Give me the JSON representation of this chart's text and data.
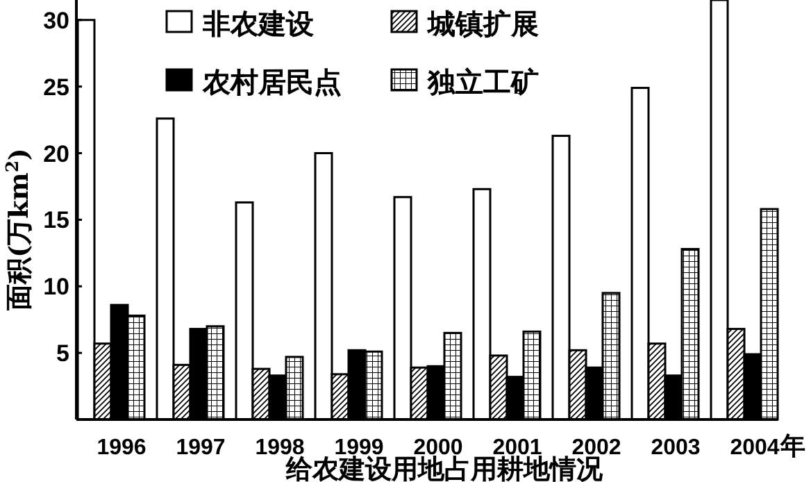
{
  "chart_data": {
    "type": "bar",
    "xlabel": "给农建设用地占用耕地情况",
    "ylabel": "面积(万km$^{2}$)",
    "annotations": [
      "年"
    ],
    "categories": [
      "1996",
      "1997",
      "1998",
      "1999",
      "2000",
      "2001",
      "2002",
      "2003",
      "2004"
    ],
    "series": [
      {
        "name": "非农建设",
        "color": "#ffffff",
        "values": [
          30,
          22.6,
          16.3,
          20.0,
          16.7,
          17.3,
          21.3,
          24.9,
          31.5
        ]
      },
      {
        "name": "城镇扩展",
        "color": "#000000",
        "values": [
          5.7,
          4.1,
          3.8,
          3.4,
          3.9,
          4.8,
          5.2,
          5.7,
          6.8
        ]
      },
      {
        "name": "农村居民点",
        "color": "#000000",
        "values": [
          8.6,
          6.8,
          3.3,
          5.2,
          4.0,
          3.2,
          3.9,
          3.3,
          4.9
        ]
      },
      {
        "name": "独立工矿",
        "color": "#000000",
        "values": [
          7.8,
          7.0,
          4.7,
          5.1,
          6.5,
          6.6,
          9.5,
          12.8,
          15.8
        ]
      }
    ],
    "ylim": [
      0,
      31.5
    ],
    "yticks": [
      5,
      10,
      15,
      20,
      25,
      30
    ],
    "grid": false,
    "legend": "top"
  }
}
